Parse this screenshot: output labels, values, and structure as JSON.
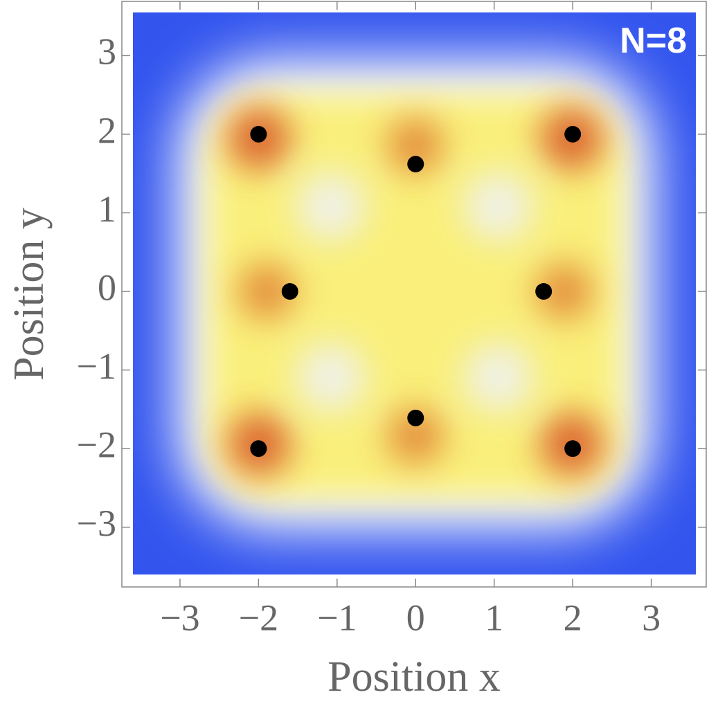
{
  "chart_data": {
    "type": "scatter",
    "annotation": "N=8",
    "x_label": "Position x",
    "y_label": "Position y",
    "color": "#000000",
    "x": [
      -2,
      0,
      2,
      -1.6,
      1.63,
      -2,
      0,
      2
    ],
    "values": [
      2,
      1.62,
      2,
      0,
      0,
      -2,
      -1.61,
      -2
    ],
    "xlim": [
      -3.74,
      3.7
    ],
    "ylim": [
      -3.76,
      3.69
    ],
    "xticks": [
      {
        "value": -3,
        "label": "−3"
      },
      {
        "value": -2,
        "label": "−2"
      },
      {
        "value": -1,
        "label": "−1"
      },
      0,
      1,
      2,
      3
    ],
    "yticks": [
      {
        "value": -3,
        "label": "−3"
      },
      {
        "value": -2,
        "label": "−2"
      },
      {
        "value": -1,
        "label": "−1"
      },
      0,
      1,
      2,
      3
    ]
  }
}
